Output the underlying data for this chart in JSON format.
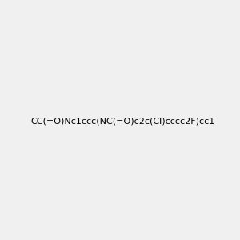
{
  "smiles": "CC(=O)Nc1ccc(NC(=O)c2c(Cl)cccc2F)cc1",
  "image_size": 300,
  "background_color": "#f0f0f0",
  "title": ""
}
